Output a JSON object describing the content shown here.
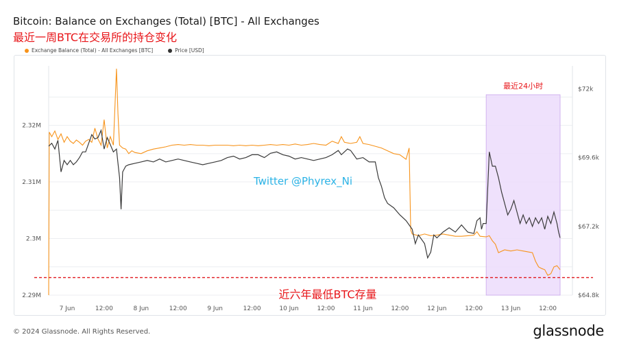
{
  "header": {
    "title": "Bitcoin: Balance on Exchanges (Total) [BTC] - All Exchanges",
    "subtitle": "最近一周BTC在交易所的持仓变化"
  },
  "legend": {
    "items": [
      {
        "label": "Exchange Balance (Total) - All Exchanges [BTC]",
        "color": "#f7931a"
      },
      {
        "label": "Price [USD]",
        "color": "#333333"
      }
    ]
  },
  "annotations": {
    "highlight_label": "最近24小时",
    "watermark": "Twitter @Phyrex_Ni",
    "low_line_label": "近六年最低BTC存量"
  },
  "footer": {
    "copyright": "© 2024 Glassnode. All Rights Reserved.",
    "brand": "glassnode"
  },
  "colors": {
    "balance": "#f7931a",
    "price": "#3a3a3a",
    "highlight_fill": "#ecdcfb",
    "highlight_stroke": "#c9a6ec",
    "dashed_line": "#e0161c",
    "annotation_red": "#e8161a",
    "watermark": "#2bb3e6"
  },
  "chart_data": {
    "type": "line",
    "x_range_hours": [
      0,
      170
    ],
    "x_ticks": [
      {
        "label": "7 Jun",
        "h": 6
      },
      {
        "label": "12:00",
        "h": 18
      },
      {
        "label": "8 Jun",
        "h": 30
      },
      {
        "label": "12:00",
        "h": 42
      },
      {
        "label": "9 Jun",
        "h": 54
      },
      {
        "label": "12:00",
        "h": 66
      },
      {
        "label": "10 Jun",
        "h": 78
      },
      {
        "label": "12:00",
        "h": 90
      },
      {
        "label": "11 Jun",
        "h": 102
      },
      {
        "label": "12:00",
        "h": 114
      },
      {
        "label": "12 Jun",
        "h": 126
      },
      {
        "label": "12:00",
        "h": 138
      },
      {
        "label": "13 Jun",
        "h": 150
      },
      {
        "label": "12:00",
        "h": 162
      }
    ],
    "y_left": {
      "ticks": [
        "2.29M",
        "2.3M",
        "2.31M",
        "2.32M"
      ],
      "tick_values": [
        2.29,
        2.3,
        2.31,
        2.32
      ],
      "range": [
        2.29,
        2.3305
      ],
      "unit": "M BTC"
    },
    "y_right": {
      "ticks": [
        "$64.8k",
        "$67.2k",
        "$69.6k",
        "$72k"
      ],
      "tick_values": [
        64.8,
        67.2,
        69.6,
        72.0
      ],
      "range": [
        64.8,
        72.8
      ],
      "unit": "k USD"
    },
    "highlight_range_hours": [
      142,
      166
    ],
    "low_line_value": 2.2931,
    "series": [
      {
        "name": "Exchange Balance (Total) - All Exchanges [BTC]",
        "axis": "left",
        "points": [
          [
            0,
            2.29
          ],
          [
            0.2,
            2.3188
          ],
          [
            1,
            2.318
          ],
          [
            2,
            2.319
          ],
          [
            3,
            2.3175
          ],
          [
            4,
            2.3185
          ],
          [
            5,
            2.317
          ],
          [
            6,
            2.318
          ],
          [
            7,
            2.3172
          ],
          [
            8,
            2.3168
          ],
          [
            9,
            2.3174
          ],
          [
            10,
            2.317
          ],
          [
            11,
            2.3165
          ],
          [
            12,
            2.3172
          ],
          [
            13,
            2.3175
          ],
          [
            14,
            2.317
          ],
          [
            15,
            2.3195
          ],
          [
            16,
            2.3176
          ],
          [
            17,
            2.3165
          ],
          [
            18,
            2.321
          ],
          [
            19,
            2.316
          ],
          [
            20,
            2.318
          ],
          [
            21,
            2.3165
          ],
          [
            22,
            2.33
          ],
          [
            22.5,
            2.322
          ],
          [
            23,
            2.3165
          ],
          [
            24,
            2.316
          ],
          [
            25,
            2.3158
          ],
          [
            26,
            2.315
          ],
          [
            27,
            2.3155
          ],
          [
            28,
            2.3152
          ],
          [
            30,
            2.315
          ],
          [
            32,
            2.3155
          ],
          [
            34,
            2.3158
          ],
          [
            36,
            2.316
          ],
          [
            38,
            2.3162
          ],
          [
            40,
            2.3165
          ],
          [
            42,
            2.3166
          ],
          [
            44,
            2.3165
          ],
          [
            46,
            2.3166
          ],
          [
            48,
            2.3165
          ],
          [
            50,
            2.3165
          ],
          [
            52,
            2.3164
          ],
          [
            54,
            2.3165
          ],
          [
            56,
            2.3165
          ],
          [
            58,
            2.3165
          ],
          [
            60,
            2.3164
          ],
          [
            62,
            2.3165
          ],
          [
            64,
            2.3164
          ],
          [
            66,
            2.3165
          ],
          [
            68,
            2.3164
          ],
          [
            70,
            2.3165
          ],
          [
            72,
            2.3166
          ],
          [
            74,
            2.3165
          ],
          [
            76,
            2.3166
          ],
          [
            78,
            2.3165
          ],
          [
            80,
            2.3167
          ],
          [
            82,
            2.3165
          ],
          [
            84,
            2.3166
          ],
          [
            86,
            2.3168
          ],
          [
            88,
            2.3166
          ],
          [
            90,
            2.3165
          ],
          [
            92,
            2.3172
          ],
          [
            94,
            2.3168
          ],
          [
            95,
            2.318
          ],
          [
            96,
            2.317
          ],
          [
            98,
            2.3168
          ],
          [
            100,
            2.317
          ],
          [
            101,
            2.318
          ],
          [
            102,
            2.3168
          ],
          [
            104,
            2.3166
          ],
          [
            106,
            2.3163
          ],
          [
            108,
            2.316
          ],
          [
            110,
            2.3155
          ],
          [
            112,
            2.315
          ],
          [
            114,
            2.3148
          ],
          [
            116,
            2.314
          ],
          [
            117,
            2.316
          ],
          [
            117.5,
            2.3015
          ],
          [
            118,
            2.3008
          ],
          [
            120,
            2.3005
          ],
          [
            122,
            2.3008
          ],
          [
            124,
            2.3005
          ],
          [
            126,
            2.3006
          ],
          [
            128,
            2.3008
          ],
          [
            130,
            2.3006
          ],
          [
            132,
            2.3004
          ],
          [
            134,
            2.3004
          ],
          [
            136,
            2.3005
          ],
          [
            138,
            2.3006
          ],
          [
            139,
            2.3012
          ],
          [
            140,
            2.3004
          ],
          [
            142,
            2.3003
          ],
          [
            143,
            2.3005
          ],
          [
            144,
            2.2996
          ],
          [
            145,
            2.299
          ],
          [
            146,
            2.2975
          ],
          [
            148,
            2.298
          ],
          [
            150,
            2.2978
          ],
          [
            152,
            2.298
          ],
          [
            154,
            2.2978
          ],
          [
            156,
            2.2976
          ],
          [
            157,
            2.2975
          ],
          [
            158,
            2.296
          ],
          [
            159,
            2.295
          ],
          [
            160,
            2.2947
          ],
          [
            161,
            2.2945
          ],
          [
            162,
            2.2935
          ],
          [
            163,
            2.2938
          ],
          [
            164,
            2.295
          ],
          [
            165,
            2.2952
          ],
          [
            166,
            2.2945
          ]
        ]
      },
      {
        "name": "Price [USD]",
        "axis": "right",
        "points": [
          [
            0,
            70.0
          ],
          [
            1,
            70.1
          ],
          [
            2,
            69.9
          ],
          [
            3,
            70.2
          ],
          [
            4,
            69.1
          ],
          [
            5,
            69.5
          ],
          [
            6,
            69.35
          ],
          [
            7,
            69.5
          ],
          [
            8,
            69.35
          ],
          [
            9,
            69.45
          ],
          [
            10,
            69.6
          ],
          [
            11,
            69.8
          ],
          [
            12,
            69.8
          ],
          [
            13,
            70.1
          ],
          [
            14,
            70.4
          ],
          [
            15,
            70.25
          ],
          [
            16,
            70.3
          ],
          [
            17,
            70.55
          ],
          [
            18,
            69.9
          ],
          [
            19,
            70.3
          ],
          [
            20,
            70.05
          ],
          [
            21,
            69.8
          ],
          [
            22,
            69.9
          ],
          [
            22.5,
            69.4
          ],
          [
            23,
            68.9
          ],
          [
            23.5,
            67.8
          ],
          [
            24,
            69.1
          ],
          [
            25,
            69.3
          ],
          [
            26,
            69.35
          ],
          [
            28,
            69.4
          ],
          [
            30,
            69.45
          ],
          [
            32,
            69.5
          ],
          [
            34,
            69.45
          ],
          [
            36,
            69.55
          ],
          [
            38,
            69.45
          ],
          [
            40,
            69.5
          ],
          [
            42,
            69.55
          ],
          [
            44,
            69.5
          ],
          [
            46,
            69.45
          ],
          [
            48,
            69.4
          ],
          [
            50,
            69.35
          ],
          [
            52,
            69.4
          ],
          [
            54,
            69.45
          ],
          [
            56,
            69.5
          ],
          [
            58,
            69.6
          ],
          [
            60,
            69.65
          ],
          [
            62,
            69.55
          ],
          [
            64,
            69.6
          ],
          [
            66,
            69.7
          ],
          [
            68,
            69.7
          ],
          [
            70,
            69.6
          ],
          [
            72,
            69.75
          ],
          [
            74,
            69.8
          ],
          [
            76,
            69.7
          ],
          [
            78,
            69.65
          ],
          [
            80,
            69.55
          ],
          [
            82,
            69.6
          ],
          [
            84,
            69.55
          ],
          [
            86,
            69.5
          ],
          [
            88,
            69.55
          ],
          [
            90,
            69.6
          ],
          [
            92,
            69.7
          ],
          [
            94,
            69.85
          ],
          [
            95,
            69.7
          ],
          [
            96,
            69.8
          ],
          [
            97,
            69.9
          ],
          [
            98,
            69.85
          ],
          [
            99,
            69.7
          ],
          [
            100,
            69.55
          ],
          [
            102,
            69.6
          ],
          [
            104,
            69.45
          ],
          [
            106,
            69.45
          ],
          [
            107,
            68.9
          ],
          [
            108,
            68.6
          ],
          [
            109,
            68.2
          ],
          [
            110,
            68.0
          ],
          [
            112,
            67.85
          ],
          [
            114,
            67.6
          ],
          [
            116,
            67.4
          ],
          [
            118,
            67.1
          ],
          [
            119,
            66.6
          ],
          [
            120,
            66.9
          ],
          [
            122,
            66.6
          ],
          [
            123,
            66.1
          ],
          [
            124,
            66.3
          ],
          [
            125,
            66.9
          ],
          [
            126,
            66.8
          ],
          [
            128,
            67.0
          ],
          [
            130,
            67.15
          ],
          [
            132,
            67.0
          ],
          [
            134,
            67.25
          ],
          [
            136,
            67.0
          ],
          [
            138,
            66.95
          ],
          [
            139,
            67.4
          ],
          [
            140,
            67.5
          ],
          [
            140.5,
            67.1
          ],
          [
            141,
            67.3
          ],
          [
            142,
            67.3
          ],
          [
            143,
            69.8
          ],
          [
            144,
            69.3
          ],
          [
            145,
            69.3
          ],
          [
            146,
            68.9
          ],
          [
            147,
            68.4
          ],
          [
            148,
            68.0
          ],
          [
            149,
            67.6
          ],
          [
            150,
            67.8
          ],
          [
            151,
            68.1
          ],
          [
            152,
            67.7
          ],
          [
            153,
            67.3
          ],
          [
            154,
            67.6
          ],
          [
            155,
            67.3
          ],
          [
            156,
            67.5
          ],
          [
            157,
            67.2
          ],
          [
            158,
            67.5
          ],
          [
            159,
            67.3
          ],
          [
            160,
            67.5
          ],
          [
            161,
            67.1
          ],
          [
            162,
            67.55
          ],
          [
            163,
            67.3
          ],
          [
            164,
            67.7
          ],
          [
            165,
            67.3
          ],
          [
            165.5,
            67.0
          ],
          [
            166,
            66.8
          ]
        ]
      }
    ]
  }
}
